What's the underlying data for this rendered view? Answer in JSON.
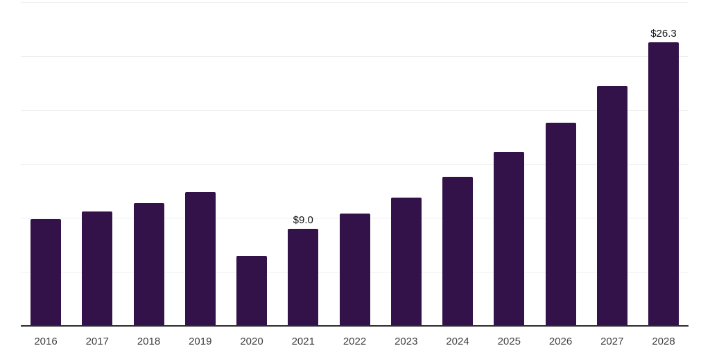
{
  "colors": {
    "bar": "#331249",
    "axis_line": "#2b2b2b",
    "gridline": "#efefef",
    "tick_label": "#3f3f3f",
    "value_label": "#111111",
    "background": "#ffffff"
  },
  "chart_data": {
    "type": "bar",
    "categories": [
      "2016",
      "2017",
      "2018",
      "2019",
      "2020",
      "2021",
      "2022",
      "2023",
      "2024",
      "2025",
      "2026",
      "2027",
      "2028"
    ],
    "values": [
      9.9,
      10.6,
      11.4,
      12.4,
      6.5,
      9.0,
      10.4,
      11.9,
      13.8,
      16.1,
      18.8,
      22.2,
      26.3
    ],
    "point_labels": [
      "",
      "",
      "",
      "",
      "",
      "$9.0",
      "",
      "",
      "",
      "",
      "",
      "",
      "$26.3"
    ],
    "title": "",
    "xlabel": "",
    "ylabel": "",
    "ylim": [
      0,
      30
    ],
    "gridline_step": 5,
    "grid": "horizontal",
    "legend": "none",
    "y_tick_labels_visible": false
  }
}
